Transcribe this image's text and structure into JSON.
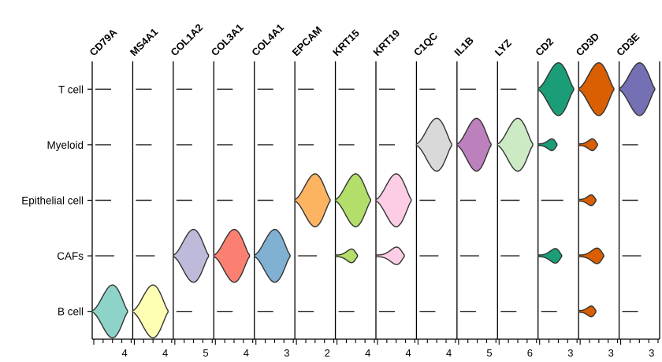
{
  "chart_data": {
    "type": "stacked-violin",
    "genes": [
      "CD79A",
      "MS4A1",
      "COL1A2",
      "COL3A1",
      "COL4A1",
      "EPCAM",
      "KRT15",
      "KRT19",
      "C1QC",
      "IL1B",
      "LYZ",
      "CD2",
      "CD3D",
      "CD3E"
    ],
    "cell_types": [
      "T cell",
      "Myeloid",
      "Epithelial cell",
      "CAFs",
      "B cell"
    ],
    "x_tick_labels": [
      "4",
      "4",
      "5",
      "4",
      "3",
      "2",
      "4",
      "4",
      "4",
      "5",
      "6",
      "3",
      "3",
      "3"
    ],
    "colors": {
      "CD79A": "#8dd3c7",
      "MS4A1": "#ffffb3",
      "COL1A2": "#bebada",
      "COL3A1": "#fb8072",
      "COL4A1": "#80b1d3",
      "EPCAM": "#fdb462",
      "KRT15": "#b3de69",
      "KRT19": "#fccde5",
      "C1QC": "#d9d9d9",
      "IL1B": "#bc80bd",
      "LYZ": "#ccebc5",
      "CD2": "#1b9e77",
      "CD3D": "#d95f02",
      "CD3E": "#7570b3"
    },
    "expression_level": {
      "T cell": {
        "CD79A": 0,
        "MS4A1": 0,
        "COL1A2": 0,
        "COL3A1": 0,
        "COL4A1": 0,
        "EPCAM": 0,
        "KRT15": 0,
        "KRT19": 0,
        "C1QC": 0,
        "IL1B": 0,
        "LYZ": 0,
        "CD2": 0.9,
        "CD3D": 0.85,
        "CD3E": 0.9
      },
      "Myeloid": {
        "CD79A": 0,
        "MS4A1": 0,
        "COL1A2": 0,
        "COL3A1": 0,
        "COL4A1": 0,
        "EPCAM": 0,
        "KRT15": 0,
        "KRT19": 0,
        "C1QC": 0.85,
        "IL1B": 0.7,
        "LYZ": 0.85,
        "CD2": 0.2,
        "CD3D": 0.2,
        "CD3E": 0
      },
      "Epithelial cell": {
        "CD79A": 0,
        "MS4A1": 0,
        "COL1A2": 0,
        "COL3A1": 0,
        "COL4A1": 0,
        "EPCAM": 0.85,
        "KRT15": 0.85,
        "KRT19": 0.85,
        "C1QC": 0,
        "IL1B": 0,
        "LYZ": 0.05,
        "CD2": 0.1,
        "CD3D": 0.15,
        "CD3E": 0
      },
      "CAFs": {
        "CD79A": 0.05,
        "MS4A1": 0.05,
        "COL1A2": 0.85,
        "COL3A1": 0.9,
        "COL4A1": 0.9,
        "EPCAM": 0.05,
        "KRT15": 0.3,
        "KRT19": 0.5,
        "C1QC": 0.05,
        "IL1B": 0.05,
        "LYZ": 0.05,
        "CD2": 0.35,
        "CD3D": 0.4,
        "CD3E": 0.05
      },
      "B cell": {
        "CD79A": 0.85,
        "MS4A1": 0.85,
        "COL1A2": 0,
        "COL3A1": 0,
        "COL4A1": 0,
        "EPCAM": 0,
        "KRT15": 0,
        "KRT19": 0,
        "C1QC": 0,
        "IL1B": 0,
        "LYZ": 0,
        "CD2": 0,
        "CD3D": 0.15,
        "CD3E": 0
      }
    }
  }
}
